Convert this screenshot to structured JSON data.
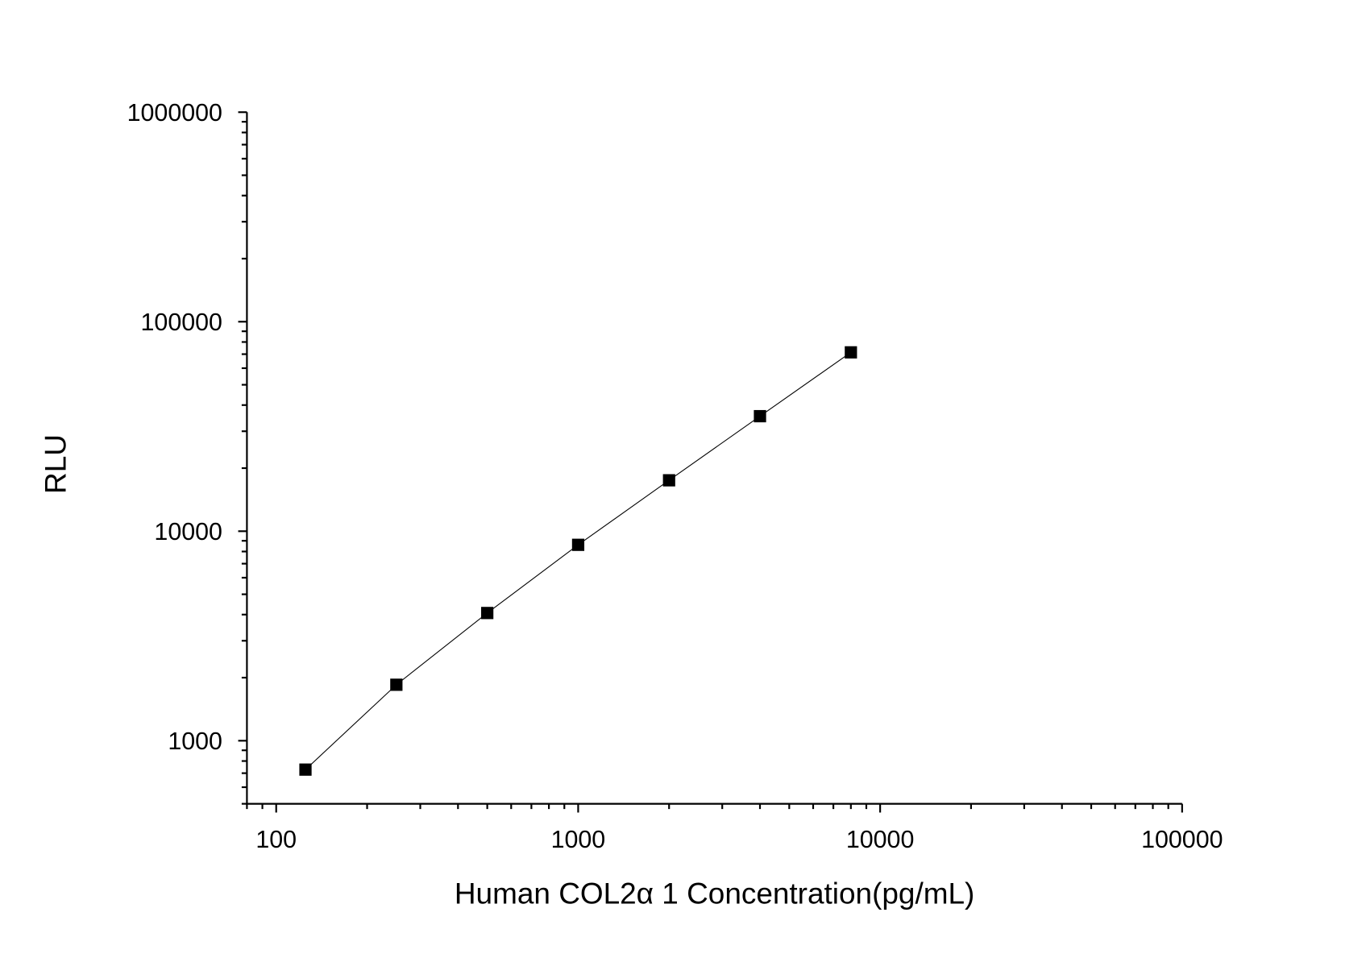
{
  "chart_data": {
    "type": "line",
    "title": "",
    "xlabel": "Human  COL2α 1  Concentration(pg/mL)",
    "ylabel": "RLU",
    "xscale": "log",
    "yscale": "log",
    "xlim": [
      80,
      100000
    ],
    "ylim": [
      500,
      1000000
    ],
    "xticks": [
      100,
      1000,
      10000,
      100000
    ],
    "xtick_labels": [
      "100",
      "1000",
      "10000",
      "100000"
    ],
    "yticks": [
      1000,
      10000,
      100000,
      1000000
    ],
    "ytick_labels": [
      "1000",
      "10000",
      "100000",
      "1000000"
    ],
    "grid": false,
    "legend": "none",
    "marker": "square",
    "color": "#000000",
    "series": [
      {
        "x": [
          125,
          250,
          500,
          1000,
          2000,
          4000,
          8000
        ],
        "y": [
          728,
          1850,
          4070,
          8610,
          17500,
          35400,
          71400
        ]
      }
    ]
  }
}
